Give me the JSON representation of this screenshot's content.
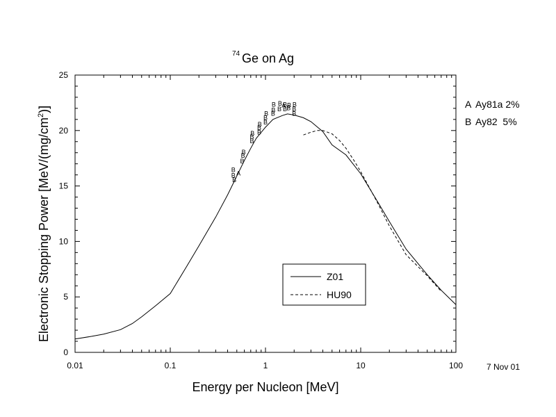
{
  "chart_data": {
    "type": "line",
    "title_sup": "74",
    "title_main": "Ge on Ag",
    "xlabel": "Energy per Nucleon [MeV]",
    "ylabel_main": "Electronic Stopping Power [MeV/(mg/cm",
    "ylabel_sup": "2",
    "ylabel_end": ")]",
    "xscale": "log",
    "xlim": [
      0.01,
      100
    ],
    "ylim": [
      0,
      25
    ],
    "xticks": [
      {
        "v": 0.01,
        "label": "0.01"
      },
      {
        "v": 0.1,
        "label": "0.1"
      },
      {
        "v": 1,
        "label": "1"
      },
      {
        "v": 10,
        "label": "10"
      },
      {
        "v": 100,
        "label": "100"
      }
    ],
    "yticks": [
      {
        "v": 0,
        "label": "0"
      },
      {
        "v": 5,
        "label": "5"
      },
      {
        "v": 10,
        "label": "10"
      },
      {
        "v": 15,
        "label": "15"
      },
      {
        "v": 20,
        "label": "20"
      },
      {
        "v": 25,
        "label": "25"
      }
    ],
    "series": [
      {
        "name": "Z01",
        "style": "solid",
        "x": [
          0.01,
          0.015,
          0.02,
          0.03,
          0.04,
          0.05,
          0.07,
          0.1,
          0.15,
          0.2,
          0.3,
          0.4,
          0.5,
          0.6,
          0.7,
          0.8,
          1.0,
          1.2,
          1.5,
          1.7,
          2.0,
          2.5,
          3.0,
          4.0,
          5.0,
          7.0,
          10,
          15,
          20,
          30,
          50,
          70,
          100
        ],
        "y": [
          1.2,
          1.45,
          1.65,
          2.05,
          2.6,
          3.2,
          4.2,
          5.3,
          7.8,
          9.6,
          12.2,
          14.2,
          15.9,
          17.3,
          18.4,
          19.3,
          20.3,
          21.0,
          21.35,
          21.5,
          21.4,
          21.15,
          20.8,
          19.9,
          18.7,
          17.8,
          16.1,
          13.6,
          11.8,
          9.3,
          7.0,
          5.6,
          4.3
        ]
      },
      {
        "name": "HU90",
        "style": "dashed",
        "x": [
          2.5,
          3.0,
          3.5,
          4.0,
          5.0,
          6.0,
          7.0,
          8.5,
          10,
          15,
          20,
          30,
          50,
          70
        ],
        "y": [
          19.6,
          19.85,
          20.0,
          20.0,
          19.7,
          19.1,
          18.4,
          17.3,
          16.3,
          13.5,
          11.4,
          8.8,
          6.9,
          5.5
        ]
      }
    ],
    "points": [
      {
        "m": "B",
        "x": 0.46,
        "y": 16.5
      },
      {
        "m": "B",
        "x": 0.46,
        "y": 16.0
      },
      {
        "m": "B",
        "x": 0.47,
        "y": 15.6
      },
      {
        "m": "A",
        "x": 0.52,
        "y": 16.2
      },
      {
        "m": "B",
        "x": 0.57,
        "y": 17.3
      },
      {
        "m": "B",
        "x": 0.58,
        "y": 17.8
      },
      {
        "m": "B",
        "x": 0.59,
        "y": 18.1
      },
      {
        "m": "B",
        "x": 0.72,
        "y": 19.1
      },
      {
        "m": "B",
        "x": 0.72,
        "y": 19.5
      },
      {
        "m": "B",
        "x": 0.73,
        "y": 19.8
      },
      {
        "m": "B",
        "x": 0.86,
        "y": 19.9
      },
      {
        "m": "B",
        "x": 0.86,
        "y": 20.3
      },
      {
        "m": "B",
        "x": 0.87,
        "y": 20.6
      },
      {
        "m": "B",
        "x": 1.0,
        "y": 20.8
      },
      {
        "m": "B",
        "x": 1.0,
        "y": 21.2
      },
      {
        "m": "B",
        "x": 1.02,
        "y": 21.6
      },
      {
        "m": "B",
        "x": 1.2,
        "y": 21.6
      },
      {
        "m": "B",
        "x": 1.21,
        "y": 21.9
      },
      {
        "m": "B",
        "x": 1.22,
        "y": 22.4
      },
      {
        "m": "B",
        "x": 1.4,
        "y": 22.0
      },
      {
        "m": "B",
        "x": 1.42,
        "y": 22.5
      },
      {
        "m": "A",
        "x": 1.55,
        "y": 22.3
      },
      {
        "m": "B",
        "x": 1.6,
        "y": 22.0
      },
      {
        "m": "B",
        "x": 1.6,
        "y": 22.4
      },
      {
        "m": "B",
        "x": 1.75,
        "y": 22.1
      },
      {
        "m": "B",
        "x": 1.77,
        "y": 22.35
      },
      {
        "m": "B",
        "x": 2.0,
        "y": 21.6
      },
      {
        "m": "B",
        "x": 2.0,
        "y": 22.0
      },
      {
        "m": "B",
        "x": 2.02,
        "y": 22.4
      }
    ],
    "data_legend": [
      {
        "marker": "A",
        "text": "Ay81a 2%"
      },
      {
        "marker": "B",
        "text": "Ay82  5%"
      }
    ],
    "date_label": "7 Nov 01",
    "legend_position": "lower-center",
    "grid": false
  }
}
